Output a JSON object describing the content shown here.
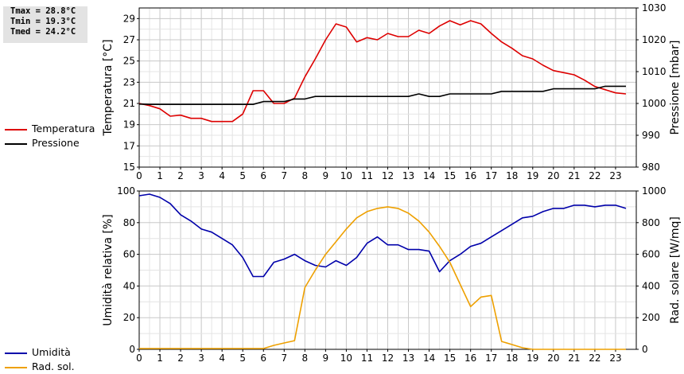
{
  "stats": {
    "tmax": "Tmax = 28.8°C",
    "tmin": "Tmin = 19.3°C",
    "tmed": "Tmed = 24.2°C"
  },
  "legend_top": [
    {
      "label": "Temperatura",
      "color": "#dd0000"
    },
    {
      "label": "Pressione",
      "color": "#000000"
    }
  ],
  "legend_bottom": [
    {
      "label": "Umidità",
      "color": "#0000aa"
    },
    {
      "label": "Rad. sol.",
      "color": "#eea000"
    }
  ],
  "chart_data": [
    {
      "type": "line",
      "ylabel": "Temperatura [°C]",
      "y2label": "Pressione [mbar]",
      "xlim": [
        0,
        24
      ],
      "ylim": [
        15,
        30
      ],
      "y2lim": [
        980,
        1030
      ],
      "xticks": [
        0,
        1,
        2,
        3,
        4,
        5,
        6,
        7,
        8,
        9,
        10,
        11,
        12,
        13,
        14,
        15,
        16,
        17,
        18,
        19,
        20,
        21,
        22,
        23
      ],
      "yticks": [
        15,
        17,
        19,
        21,
        23,
        25,
        27,
        29
      ],
      "y2ticks": [
        980,
        990,
        1000,
        1010,
        1020,
        1030
      ],
      "grid": true,
      "series": [
        {
          "name": "Temperatura",
          "axis": "left",
          "color": "#dd0000",
          "x": [
            0,
            0.5,
            1,
            1.5,
            2,
            2.5,
            3,
            3.5,
            4,
            4.5,
            5,
            5.5,
            6,
            6.5,
            7,
            7.5,
            8,
            8.5,
            9,
            9.5,
            10,
            10.5,
            11,
            11.5,
            12,
            12.5,
            13,
            13.5,
            14,
            14.5,
            15,
            15.5,
            16,
            16.5,
            17,
            17.5,
            18,
            18.5,
            19,
            19.5,
            20,
            20.5,
            21,
            21.5,
            22,
            22.5,
            23,
            23.5
          ],
          "y": [
            21.0,
            20.8,
            20.5,
            19.8,
            19.9,
            19.6,
            19.6,
            19.3,
            19.3,
            19.3,
            20.0,
            22.2,
            22.2,
            21.0,
            21.0,
            21.5,
            23.5,
            25.2,
            27.0,
            28.5,
            28.2,
            26.8,
            27.2,
            27.0,
            27.6,
            27.3,
            27.3,
            27.9,
            27.6,
            28.3,
            28.8,
            28.4,
            28.8,
            28.5,
            27.6,
            26.8,
            26.2,
            25.5,
            25.2,
            24.6,
            24.1,
            23.9,
            23.7,
            23.2,
            22.6,
            22.3,
            22.0,
            21.9
          ]
        },
        {
          "name": "Pressione",
          "axis": "right",
          "color": "#000000",
          "x": [
            0,
            0.5,
            1,
            1.5,
            2,
            2.5,
            3,
            3.5,
            4,
            4.5,
            5,
            5.5,
            6,
            6.5,
            7,
            7.5,
            8,
            8.5,
            9,
            9.5,
            10,
            10.5,
            11,
            11.5,
            12,
            12.5,
            13,
            13.5,
            14,
            14.5,
            15,
            15.5,
            16,
            16.5,
            17,
            17.5,
            18,
            18.5,
            19,
            19.5,
            20,
            20.5,
            21,
            21.5,
            22,
            22.5,
            23,
            23.5
          ],
          "y": [
            999.8,
            999.7,
            999.7,
            999.7,
            999.7,
            999.7,
            999.7,
            999.7,
            999.7,
            999.7,
            999.7,
            999.7,
            1000.6,
            1000.6,
            1000.6,
            1001.4,
            1001.4,
            1002.2,
            1002.2,
            1002.2,
            1002.2,
            1002.2,
            1002.2,
            1002.2,
            1002.2,
            1002.2,
            1002.2,
            1003.0,
            1002.2,
            1002.2,
            1003.0,
            1003.0,
            1003.0,
            1003.0,
            1003.0,
            1003.8,
            1003.8,
            1003.8,
            1003.8,
            1003.8,
            1004.6,
            1004.6,
            1004.6,
            1004.6,
            1004.6,
            1005.4,
            1005.4,
            1005.4
          ]
        }
      ]
    },
    {
      "type": "line",
      "ylabel": "Umidità relativa [%]",
      "y2label": "Rad. solare [W/mq]",
      "xlim": [
        0,
        24
      ],
      "ylim": [
        0,
        100
      ],
      "y2lim": [
        0,
        1000
      ],
      "xticks": [
        0,
        1,
        2,
        3,
        4,
        5,
        6,
        7,
        8,
        9,
        10,
        11,
        12,
        13,
        14,
        15,
        16,
        17,
        18,
        19,
        20,
        21,
        22,
        23
      ],
      "yticks": [
        0,
        20,
        40,
        60,
        80,
        100
      ],
      "y2ticks": [
        0,
        200,
        400,
        600,
        800,
        1000
      ],
      "grid": true,
      "series": [
        {
          "name": "Umidità",
          "axis": "left",
          "color": "#0000aa",
          "x": [
            0,
            0.5,
            1,
            1.5,
            2,
            2.5,
            3,
            3.5,
            4,
            4.5,
            5,
            5.5,
            6,
            6.5,
            7,
            7.5,
            8,
            8.5,
            9,
            9.5,
            10,
            10.5,
            11,
            11.5,
            12,
            12.5,
            13,
            13.5,
            14,
            14.5,
            15,
            15.5,
            16,
            16.5,
            17,
            17.5,
            18,
            18.5,
            19,
            19.5,
            20,
            20.5,
            21,
            21.5,
            22,
            22.5,
            23,
            23.5
          ],
          "y": [
            97,
            98,
            96,
            92,
            85,
            81,
            76,
            74,
            70,
            66,
            58,
            46,
            46,
            55,
            57,
            60,
            56,
            53,
            52,
            56,
            53,
            58,
            67,
            71,
            66,
            66,
            63,
            63,
            62,
            49,
            56,
            60,
            65,
            67,
            71,
            75,
            79,
            83,
            84,
            87,
            89,
            89,
            91,
            91,
            90,
            91,
            91,
            89
          ]
        },
        {
          "name": "Rad. sol.",
          "axis": "right",
          "color": "#eea000",
          "x": [
            0,
            0.5,
            1,
            1.5,
            2,
            2.5,
            3,
            3.5,
            4,
            4.5,
            5,
            5.5,
            6,
            6.5,
            7,
            7.5,
            8,
            8.5,
            9,
            9.5,
            10,
            10.5,
            11,
            11.5,
            12,
            12.5,
            13,
            13.5,
            14,
            14.5,
            15,
            15.5,
            16,
            16.5,
            17,
            17.5,
            18,
            18.5,
            19,
            19.5,
            20,
            20.5,
            21,
            21.5,
            22,
            22.5,
            23,
            23.5
          ],
          "y": [
            5,
            5,
            5,
            5,
            5,
            5,
            5,
            5,
            5,
            5,
            5,
            5,
            5,
            25,
            40,
            55,
            390,
            500,
            600,
            680,
            760,
            830,
            870,
            890,
            900,
            890,
            860,
            810,
            740,
            650,
            550,
            410,
            270,
            330,
            340,
            50,
            30,
            10,
            0,
            0,
            0,
            0,
            0,
            0,
            0,
            0,
            0,
            0
          ]
        }
      ]
    }
  ]
}
